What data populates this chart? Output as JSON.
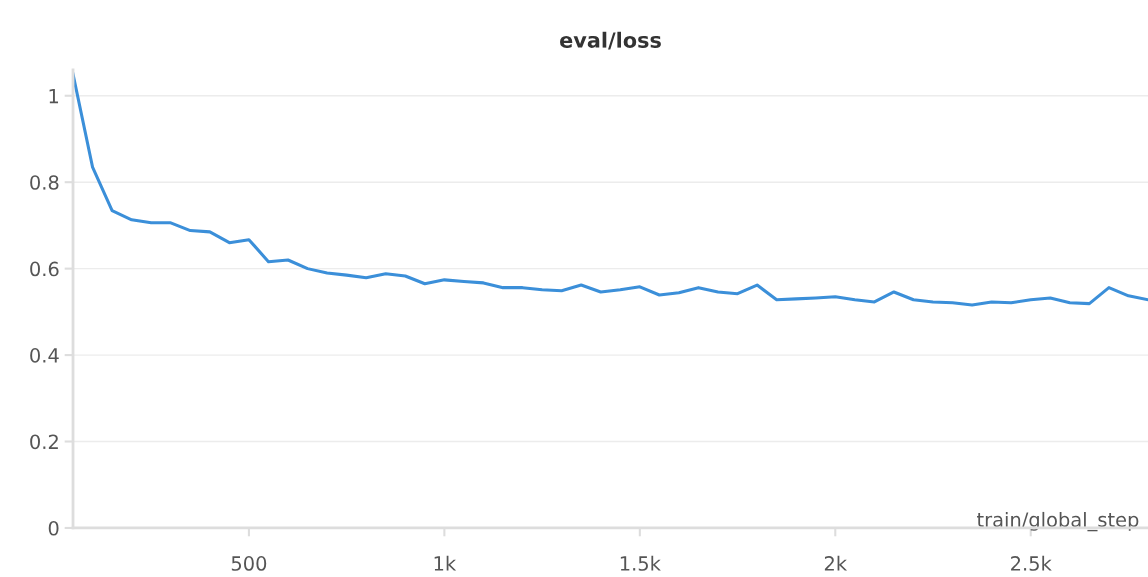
{
  "chart_data": {
    "type": "line",
    "title": "eval/loss",
    "xlabel": "train/global_step",
    "x": [
      50,
      100,
      150,
      200,
      250,
      300,
      350,
      400,
      450,
      500,
      550,
      600,
      650,
      700,
      750,
      800,
      850,
      900,
      950,
      1000,
      1050,
      1100,
      1150,
      1200,
      1250,
      1300,
      1350,
      1400,
      1450,
      1500,
      1550,
      1600,
      1650,
      1700,
      1750,
      1800,
      1850,
      1900,
      1950,
      2000,
      2050,
      2100,
      2150,
      2200,
      2250,
      2300,
      2350,
      2400,
      2450,
      2500,
      2550,
      2600,
      2650,
      2700,
      2750,
      2800
    ],
    "series": [
      {
        "color": "#3b8fd9",
        "values": [
          1.05,
          0.835,
          0.734,
          0.713,
          0.706,
          0.706,
          0.688,
          0.685,
          0.66,
          0.667,
          0.616,
          0.62,
          0.6,
          0.59,
          0.585,
          0.579,
          0.588,
          0.583,
          0.565,
          0.574,
          0.57,
          0.567,
          0.556,
          0.556,
          0.551,
          0.549,
          0.562,
          0.546,
          0.551,
          0.558,
          0.539,
          0.544,
          0.556,
          0.546,
          0.542,
          0.562,
          0.528,
          0.53,
          0.532,
          0.535,
          0.528,
          0.523,
          0.546,
          0.528,
          0.523,
          0.521,
          0.516,
          0.523,
          0.521,
          0.528,
          0.532,
          0.521,
          0.519,
          0.556,
          0.537,
          0.528
        ]
      }
    ],
    "xlim": [
      50,
      2800
    ],
    "ylim": [
      0,
      1.06
    ],
    "xticks": [
      {
        "value": 500,
        "label": "500"
      },
      {
        "value": 1000,
        "label": "1k"
      },
      {
        "value": 1500,
        "label": "1.5k"
      },
      {
        "value": 2000,
        "label": "2k"
      },
      {
        "value": 2500,
        "label": "2.5k"
      }
    ],
    "yticks": [
      0,
      0.2,
      0.4,
      0.6,
      0.8,
      1
    ],
    "grid": "y",
    "marker": "none",
    "line_style": "solid",
    "legend": false
  }
}
